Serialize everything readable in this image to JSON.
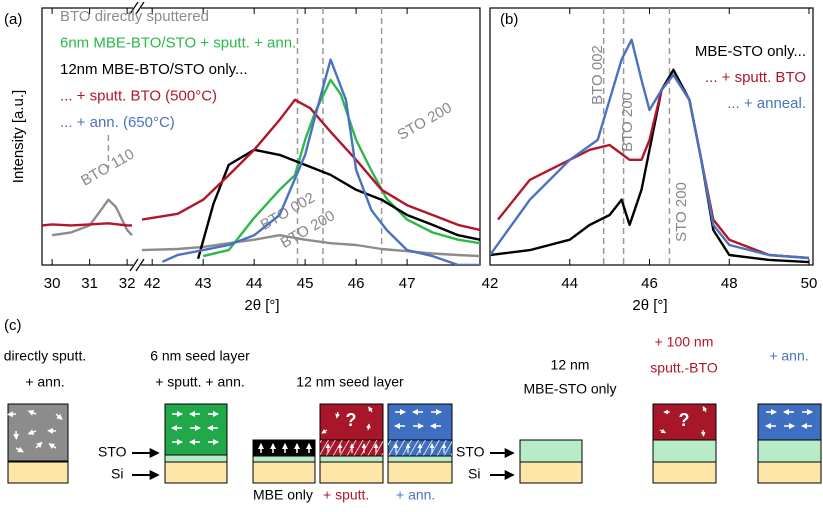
{
  "chart_data": [
    {
      "type": "line",
      "panel": "(a)",
      "xlabel": "2θ [°]",
      "ylabel": "Intensity [a.u.]",
      "log_y": true,
      "ylim": [
        1,
        1900
      ],
      "x_segments": [
        {
          "xlim": [
            29.73,
            32.13
          ],
          "xticks": [
            30,
            31,
            32
          ]
        },
        {
          "xlim": [
            41.8,
            48.43
          ],
          "xticks": [
            42,
            43,
            44,
            45,
            46,
            47
          ]
        }
      ],
      "series": [
        {
          "name": "BTO directly sputtered",
          "color": "#8c8c8c",
          "x": [
            30,
            30.5,
            31,
            31.3,
            31.5,
            31.7,
            32,
            32.13,
            null,
            41.8,
            42.5,
            43,
            43.5,
            44,
            44.5,
            45,
            45.5,
            46,
            46.5,
            47,
            47.5,
            48,
            48.43
          ],
          "values": [
            2.4,
            2.6,
            3.2,
            5.0,
            6.8,
            5.5,
            2.8,
            2.4,
            null,
            1.55,
            1.6,
            1.7,
            1.9,
            2.1,
            2.4,
            2.1,
            1.9,
            1.8,
            1.6,
            1.5,
            1.4,
            1.34,
            1.3
          ]
        },
        {
          "name": "6nm MBE-BTO/STO + sputt. + ann.",
          "color": "#2db84a",
          "x": [
            43,
            43.5,
            44,
            44.5,
            44.8,
            45,
            45.2,
            45.5,
            45.7,
            46,
            46.3,
            46.6,
            47,
            47.5,
            48,
            48.43
          ],
          "values": [
            1.3,
            1.55,
            4.0,
            9.1,
            14,
            39.5,
            90,
            230,
            150,
            39.5,
            16,
            7,
            3.8,
            2.6,
            2.1,
            1.9
          ]
        },
        {
          "name": "12nm MBE-BTO/STO only...",
          "color": "#000000",
          "x": [
            42.9,
            43.2,
            43.5,
            44,
            44.5,
            45,
            45.5,
            46,
            46.5,
            47,
            47.5,
            48,
            48.43
          ],
          "values": [
            1.2,
            6,
            18.9,
            29.5,
            25.4,
            18.9,
            14.1,
            9.1,
            6.8,
            4.35,
            3.25,
            2.4,
            2.1
          ]
        },
        {
          "name": "... + sputt. BTO (500°C)",
          "color": "#b0182a",
          "x": [
            29.73,
            30,
            30.5,
            31,
            31.5,
            32,
            32.13,
            null,
            41.8,
            42.5,
            43,
            43.5,
            44,
            44.5,
            44.8,
            45.1,
            45.5,
            46,
            46.5,
            47,
            47.5,
            48,
            48.43
          ],
          "values": [
            3.2,
            3.3,
            3.2,
            3.3,
            3.4,
            3.2,
            3.2,
            null,
            3.8,
            4.5,
            6.8,
            14,
            29.5,
            71,
            128,
            100,
            50,
            22,
            9.1,
            5.8,
            4.35,
            3.25,
            2.8
          ]
        },
        {
          "name": "... + ann. (650°C)",
          "color": "#4a72c0",
          "x": [
            42.2,
            42.5,
            43,
            43.5,
            44,
            44.5,
            45,
            45.2,
            45.5,
            45.8,
            46,
            46.3,
            46.6,
            47,
            47.5,
            48,
            48.43
          ],
          "values": [
            1.1,
            1.34,
            1.55,
            1.8,
            2.4,
            4.35,
            25.4,
            80,
            417,
            128,
            16.4,
            5,
            2.8,
            1.55,
            1.3,
            1.0,
            1.0
          ]
        }
      ],
      "ref_lines": [
        {
          "x": 31.5,
          "label": "BTO 110"
        },
        {
          "x": 44.85,
          "label": "BTO 002"
        },
        {
          "x": 45.35,
          "label": "BTO 200"
        },
        {
          "x": 46.5,
          "label": "STO 200"
        }
      ]
    },
    {
      "type": "line",
      "panel": "(b)",
      "xlabel": "2θ [°]",
      "log_y": true,
      "ylim": [
        1,
        1900
      ],
      "xlim": [
        42,
        50.1
      ],
      "xticks": [
        42,
        44,
        46,
        48,
        50
      ],
      "series": [
        {
          "name": "MBE-STO only...",
          "color": "#000000",
          "x": [
            42,
            43,
            44,
            44.5,
            45,
            45.3,
            45.5,
            45.8,
            46,
            46.3,
            46.6,
            47,
            47.3,
            47.6,
            48,
            49,
            50
          ],
          "values": [
            1.34,
            1.55,
            2.1,
            3.25,
            4.35,
            6.8,
            3.25,
            9.1,
            29.5,
            171,
            309,
            128,
            22,
            2.8,
            1.34,
            1.16,
            1.09
          ]
        },
        {
          "name": "... + sputt. BTO",
          "color": "#b0182a",
          "x": [
            42.2,
            43,
            44,
            44.5,
            45,
            45.5,
            45.8,
            46,
            46.3,
            46.6,
            47,
            47.3,
            47.6,
            48,
            49,
            50
          ],
          "values": [
            3.8,
            12.2,
            22,
            29.5,
            34,
            22,
            22,
            39.5,
            171,
            267,
            128,
            22,
            3.8,
            2.1,
            1.34,
            1.23
          ]
        },
        {
          "name": "... + anneal.",
          "color": "#4a72c0",
          "x": [
            42,
            43,
            44,
            44.7,
            45,
            45.3,
            45.55,
            45.8,
            46,
            46.3,
            46.6,
            47,
            47.3,
            47.6,
            48,
            49,
            50
          ],
          "values": [
            1.34,
            6.8,
            22,
            39.5,
            128,
            417,
            748,
            230,
            95,
            171,
            267,
            128,
            22,
            3.25,
            1.8,
            1.34,
            1.23
          ]
        }
      ],
      "ref_lines": [
        {
          "x": 44.85,
          "label": "BTO 002"
        },
        {
          "x": 45.35,
          "label": "BTO 200"
        },
        {
          "x": 46.5,
          "label": "STO 200"
        }
      ]
    }
  ],
  "diagram": {
    "panel": "(c)",
    "texts": [
      "directly sputt.",
      "+ ann.",
      "6 nm seed layer",
      "+ sputt. + ann.",
      "12 nm seed layer",
      "STO",
      "Si",
      "MBE only",
      "+ sputt.",
      "+ ann.",
      "12 nm",
      "MBE-STO only",
      "+ 100 nm",
      "sputt.-BTO",
      "+ ann.",
      "STO",
      "Si",
      "?",
      "?"
    ]
  }
}
